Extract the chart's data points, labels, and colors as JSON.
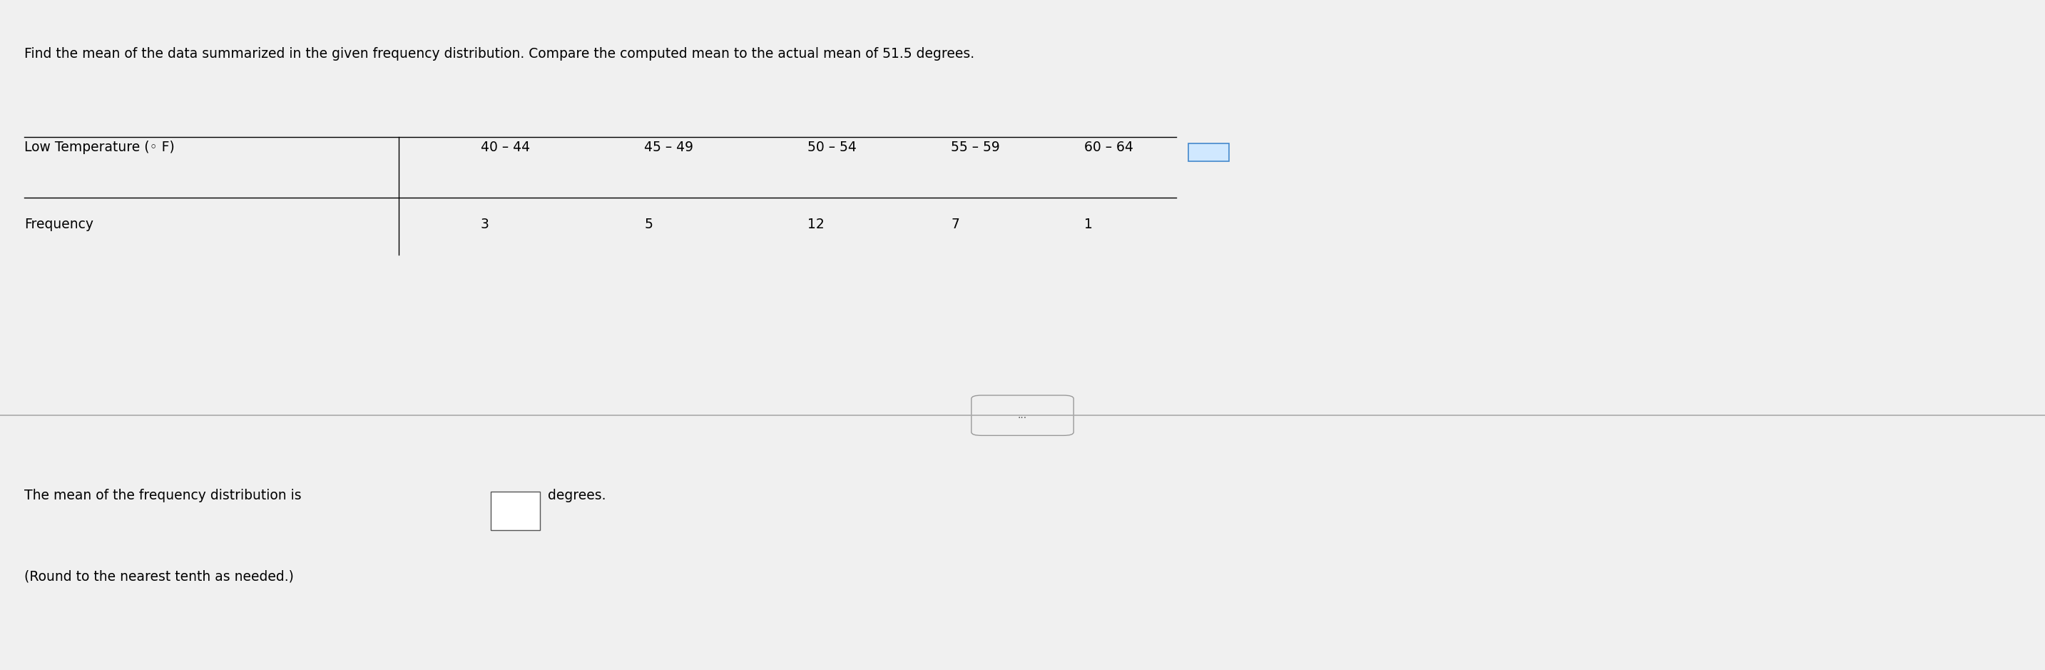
{
  "title_line1": "Find the mean of the data summarized in the given frequency distribution. Compare the computed mean to the actual mean of 51.5 degrees.",
  "row1_label": "Low Temperature (◦ F)",
  "row1_values": [
    "40 – 44",
    "45 – 49",
    "50 – 54",
    "55 – 59",
    "60 – 64"
  ],
  "row2_label": "Frequency",
  "row2_values": [
    "3",
    "5",
    "12",
    "7",
    "1"
  ],
  "bottom_line1": "The mean of the frequency distribution is",
  "bottom_line2": "degrees.",
  "bottom_line3": "(Round to the nearest tenth as needed.)",
  "divider_button_text": "...",
  "background_color": "#f0f0f0",
  "text_color": "#000000",
  "font_size_title": 13.5,
  "font_size_table": 13.5,
  "font_size_bottom": 13.5
}
